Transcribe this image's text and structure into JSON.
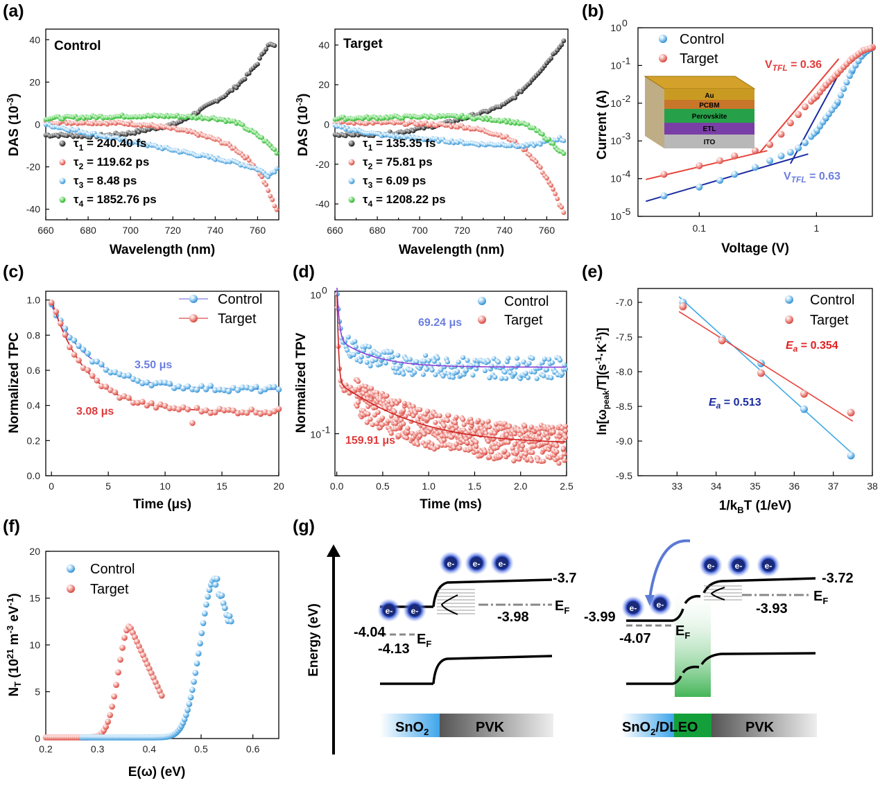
{
  "colors": {
    "black": "#222222",
    "red": "#e8423a",
    "blue": "#3fa9e6",
    "green": "#3ad43a",
    "fit_red": "#cc1f1f",
    "fit_blue": "#6a5be0",
    "dark_blue": "#1a2aa0",
    "ann_blue": "#6a7de0",
    "ann_red": "#e03a3a"
  },
  "panels": {
    "a": {
      "label": "(a)",
      "left": {
        "title": "Control",
        "legend": [
          {
            "tau": "τ",
            "sub": "1",
            "value": " = 240.40 fs",
            "color": "black"
          },
          {
            "tau": "τ",
            "sub": "2",
            "value": " = 119.62 ps",
            "color": "red"
          },
          {
            "tau": "τ",
            "sub": "3",
            "value": " = 8.48 ps",
            "color": "blue"
          },
          {
            "tau": "τ",
            "sub": "4",
            "value": " = 1852.76 ps",
            "color": "green"
          }
        ]
      },
      "right": {
        "title": "Target",
        "legend": [
          {
            "tau": "τ",
            "sub": "1",
            "value": " = 135.35 fs",
            "color": "black"
          },
          {
            "tau": "τ",
            "sub": "2",
            "value": " = 75.81 ps",
            "color": "red"
          },
          {
            "tau": "τ",
            "sub": "3",
            "value": " = 6.09 ps",
            "color": "blue"
          },
          {
            "tau": "τ",
            "sub": "4",
            "value": " = 1208.22 ps",
            "color": "green"
          }
        ]
      },
      "xlabel": "Wavelength (nm)",
      "ylabel_main": "DAS (10",
      "ylabel_sup": "-3",
      "ylabel_end": ")"
    },
    "b": {
      "label": "(b)",
      "legend": [
        "Control",
        "Target"
      ],
      "xlabel": "Voltage (V)",
      "ylabel": "Current (A)",
      "vtfl_target": {
        "main": "V",
        "sub": "TFL",
        "value": " = 0.36"
      },
      "vtfl_control": {
        "main": "V",
        "sub": "TFL",
        "value": " = 0.63"
      },
      "stack": [
        "Au",
        "PCBM",
        "Perovskite",
        "ETL",
        "ITO"
      ],
      "xtick_labels": [
        "0.1",
        "1"
      ],
      "ytick_base": "10",
      "ytick_exps": [
        "-5",
        "-4",
        "-3",
        "-2",
        "-1",
        "0"
      ]
    },
    "c": {
      "label": "(c)",
      "legend": [
        "Control",
        "Target"
      ],
      "xlabel": "Time (μs)",
      "ylabel": "Normalized TPC",
      "ann_control": "3.50 μs",
      "ann_target": "3.08 μs"
    },
    "d": {
      "label": "(d)",
      "legend": [
        "Control",
        "Target"
      ],
      "xlabel": "Time (ms)",
      "ylabel": "Normalized TPV",
      "ann_control": "69.24 μs",
      "ann_target": "159.91 μs",
      "ytick_base": "10",
      "ytick_exps": [
        "-1",
        "0"
      ]
    },
    "e": {
      "label": "(e)",
      "legend": [
        "Control",
        "Target"
      ],
      "xlabel_main": "1/k",
      "xlabel_sub": "B",
      "xlabel_end": "T (1/eV)",
      "ylabel": "ln[ω",
      "ylabel_sub": "peak",
      "ylabel_mid": "/T](s",
      "ylabel_sup1": "-1",
      "ylabel_dot": "·K",
      "ylabel_sup2": "-1",
      "ylabel_end": ")]",
      "ea_target": {
        "e": "E",
        "sub": "a",
        "value": " = 0.354"
      },
      "ea_control": {
        "e": "E",
        "sub": "a",
        "value": " = 0.513"
      }
    },
    "f": {
      "label": "(f)",
      "legend": [
        "Control",
        "Target"
      ],
      "xlabel": "E(ω) (eV)",
      "ylabel_a": "N",
      "ylabel_b": "T",
      "ylabel_c": " (10",
      "ylabel_d": "21",
      "ylabel_e": " m",
      "ylabel_f": "-3",
      "ylabel_g": " eV",
      "ylabel_h": "-1",
      "ylabel_i": ")"
    },
    "g": {
      "label": "(g)",
      "yaxis": "Energy (eV)",
      "left": {
        "sno2_cb": "-4.04",
        "sno2_ef": "-4.13",
        "pvk_cb": "-3.7",
        "pvk_ef": "-3.98",
        "ef_main": "E",
        "ef_sub": "F",
        "bar_left_main": "SnO",
        "bar_left_sub": "2",
        "bar_right": "PVK"
      },
      "right": {
        "sno2_cb": "-3.99",
        "sno2_ef": "-4.07",
        "pvk_cb": "-3.72",
        "pvk_ef": "-3.93",
        "ef_main": "E",
        "ef_sub": "F",
        "bar_left_main": "SnO",
        "bar_left_sub": "2",
        "bar_left_end": "/DLEO",
        "bar_right": "PVK"
      },
      "electron": "e-"
    }
  },
  "chart_data": [
    {
      "panel": "a-left",
      "type": "scatter",
      "title": "Control",
      "xlabel": "Wavelength (nm)",
      "ylabel": "DAS (10^-3)",
      "xlim": [
        660,
        770
      ],
      "ylim": [
        -45,
        45
      ],
      "xticks": [
        660,
        680,
        700,
        720,
        740,
        760
      ],
      "yticks": [
        -40,
        -20,
        0,
        20,
        40
      ],
      "series": [
        {
          "name": "τ1 = 240.40 fs",
          "x": [
            660,
            670,
            680,
            690,
            700,
            710,
            720,
            725,
            730,
            735,
            740,
            745,
            750,
            755,
            760,
            765,
            768
          ],
          "y": [
            -5,
            -5,
            -5.5,
            -5,
            -4,
            -2,
            0,
            2,
            5,
            8,
            11,
            14,
            18,
            23,
            29,
            38,
            37
          ]
        },
        {
          "name": "τ2 = 119.62 ps",
          "x": [
            660,
            680,
            700,
            710,
            720,
            730,
            740,
            745,
            750,
            755,
            758,
            761,
            764,
            767,
            769
          ],
          "y": [
            1,
            1,
            0.5,
            -0.5,
            -2,
            -4,
            -7,
            -9,
            -12,
            -16,
            -19,
            -23,
            -29,
            -36,
            -40
          ]
        },
        {
          "name": "τ3 = 8.48 ps",
          "x": [
            660,
            670,
            680,
            690,
            700,
            710,
            720,
            730,
            740,
            750,
            760,
            765,
            769
          ],
          "y": [
            0,
            -2,
            -4,
            -6,
            -8,
            -10,
            -12,
            -14,
            -16,
            -18,
            -21,
            -24,
            -21
          ]
        },
        {
          "name": "τ4 = 1852.76 ps",
          "x": [
            660,
            680,
            700,
            720,
            740,
            750,
            755,
            760,
            765,
            769
          ],
          "y": [
            3,
            3.5,
            4,
            4,
            3,
            1,
            -2,
            -5,
            -9,
            -13
          ]
        }
      ]
    },
    {
      "panel": "a-right",
      "type": "scatter",
      "title": "Target",
      "xlabel": "Wavelength (nm)",
      "ylabel": "DAS (10^-3)",
      "xlim": [
        660,
        770
      ],
      "ylim": [
        -48,
        48
      ],
      "xticks": [
        660,
        680,
        700,
        720,
        740,
        760
      ],
      "yticks": [
        -40,
        -20,
        0,
        20,
        40
      ],
      "series": [
        {
          "name": "τ1 = 135.35 fs",
          "x": [
            660,
            670,
            680,
            690,
            700,
            710,
            720,
            730,
            740,
            745,
            750,
            755,
            760,
            765,
            768
          ],
          "y": [
            -5,
            -5,
            -5,
            -4,
            -2,
            0,
            3,
            6,
            10,
            14,
            19,
            25,
            31,
            38,
            42
          ]
        },
        {
          "name": "τ2 = 75.81 ps",
          "x": [
            660,
            680,
            700,
            720,
            730,
            740,
            745,
            750,
            755,
            760,
            763,
            766,
            768
          ],
          "y": [
            1,
            1,
            0.5,
            -1,
            -3,
            -6,
            -9,
            -13,
            -19,
            -27,
            -33,
            -40,
            -44
          ]
        },
        {
          "name": "τ3 = 6.09 ps",
          "x": [
            660,
            670,
            680,
            690,
            700,
            710,
            720,
            730,
            740,
            748,
            755,
            762,
            766,
            768
          ],
          "y": [
            -1,
            -3,
            -5,
            -6,
            -7,
            -8,
            -9,
            -10,
            -10,
            -11,
            -10,
            -8,
            -7,
            -8
          ]
        },
        {
          "name": "τ4 = 1208.22 ps",
          "x": [
            660,
            680,
            700,
            720,
            740,
            750,
            755,
            760,
            765,
            768
          ],
          "y": [
            3,
            3.5,
            4,
            4,
            2,
            0,
            -3,
            -7,
            -12,
            -15
          ]
        }
      ]
    },
    {
      "panel": "b",
      "type": "scatter",
      "xscale": "log",
      "yscale": "log",
      "xlabel": "Voltage (V)",
      "ylabel": "Current (A)",
      "xlim": [
        0.03,
        3
      ],
      "ylim": [
        1e-05,
        1
      ],
      "series": [
        {
          "name": "Control",
          "x": [
            0.05,
            0.1,
            0.15,
            0.2,
            0.3,
            0.4,
            0.5,
            0.6,
            0.7,
            0.8,
            1,
            1.2,
            1.5,
            2,
            2.5,
            3
          ],
          "y": [
            3.5e-05,
            6e-05,
            9e-05,
            0.00013,
            0.0002,
            0.0003,
            0.0004,
            0.0005,
            0.00065,
            0.0009,
            0.0018,
            0.004,
            0.01,
            0.07,
            0.2,
            0.3
          ]
        },
        {
          "name": "Target",
          "x": [
            0.05,
            0.1,
            0.15,
            0.2,
            0.3,
            0.4,
            0.5,
            0.6,
            0.7,
            0.8,
            1,
            1.2,
            1.5,
            2,
            2.5,
            3
          ],
          "y": [
            0.00013,
            0.00022,
            0.0003,
            0.0004,
            0.00055,
            0.0008,
            0.0015,
            0.003,
            0.005,
            0.008,
            0.015,
            0.03,
            0.06,
            0.15,
            0.25,
            0.3
          ]
        }
      ]
    },
    {
      "panel": "c",
      "type": "scatter",
      "xlabel": "Time (μs)",
      "ylabel": "Normalized TPC",
      "xlim": [
        -0.5,
        20
      ],
      "ylim": [
        0,
        1.05
      ],
      "xticks": [
        0,
        5,
        10,
        15,
        20
      ],
      "yticks": [
        0,
        0.2,
        0.4,
        0.6,
        0.8,
        1.0
      ],
      "series": [
        {
          "name": "Control",
          "tau": 3.5,
          "plateau": 0.49,
          "start": 0.97
        },
        {
          "name": "Target",
          "tau": 3.08,
          "plateau": 0.365,
          "start": 1.0
        }
      ]
    },
    {
      "panel": "d",
      "type": "scatter",
      "yscale": "log",
      "xlabel": "Time (ms)",
      "ylabel": "Normalized TPV",
      "xlim": [
        -0.02,
        2.5
      ],
      "ylim": [
        0.05,
        1.05
      ],
      "xticks": [
        0,
        0.5,
        1.0,
        1.5,
        2.0,
        2.5
      ],
      "series": [
        {
          "name": "Control",
          "plateau": 0.3
        },
        {
          "name": "Target",
          "plateau": 0.085
        }
      ]
    },
    {
      "panel": "e",
      "type": "scatter",
      "xlabel": "1/kBT (1/eV)",
      "ylabel": "ln[ωpeak/T](s-1·K-1)]",
      "xlim": [
        32,
        38
      ],
      "ylim": [
        -9.5,
        -6.8
      ],
      "xticks": [
        33,
        34,
        35,
        36,
        37,
        38
      ],
      "yticks": [
        -9.5,
        -9.0,
        -8.5,
        -8.0,
        -7.5,
        -7.0
      ],
      "series": [
        {
          "name": "Control",
          "x": [
            33.15,
            34.15,
            35.15,
            36.25,
            37.45
          ],
          "y": [
            -7.0,
            -7.52,
            -7.88,
            -8.54,
            -9.21
          ]
        },
        {
          "name": "Target",
          "x": [
            33.15,
            34.15,
            35.15,
            36.25,
            37.45
          ],
          "y": [
            -7.06,
            -7.55,
            -8.02,
            -8.32,
            -8.59
          ]
        }
      ]
    },
    {
      "panel": "f",
      "type": "scatter",
      "xlabel": "E(ω) (eV)",
      "ylabel": "NT (10^21 m^-3 eV^-1)",
      "xlim": [
        0.2,
        0.65
      ],
      "ylim": [
        0,
        20
      ],
      "xticks": [
        0.2,
        0.3,
        0.4,
        0.5,
        0.6
      ],
      "yticks": [
        0,
        5,
        10,
        15,
        20
      ],
      "series": [
        {
          "name": "Control",
          "peak_x": 0.527,
          "peak_y": 17
        },
        {
          "name": "Target",
          "peak_x": 0.362,
          "peak_y": 11.9
        }
      ]
    }
  ]
}
